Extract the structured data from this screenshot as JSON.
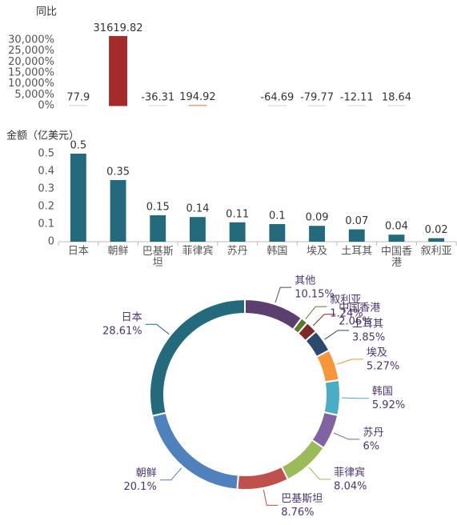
{
  "chart_data": [
    {
      "type": "bar",
      "ylabel": "同比",
      "values": [
        77.9,
        31619.82,
        -36.31,
        194.92,
        null,
        -64.69,
        -79.77,
        -12.11,
        18.64,
        null
      ],
      "colors": [
        "#d9d9d9",
        "#a52a2a",
        "#d9d9d9",
        "#f0a080",
        null,
        "#d9d9d9",
        "#d9d9d9",
        "#d9d9d9",
        "#d9d9d9",
        null
      ],
      "ylim": [
        0,
        32000
      ],
      "yticks": [
        {
          "value": 0,
          "label": "0%"
        },
        {
          "value": 5000,
          "label": "5,000%"
        },
        {
          "value": 10000,
          "label": "10,000%"
        },
        {
          "value": 15000,
          "label": "15,000%"
        },
        {
          "value": 20000,
          "label": "20,000%"
        },
        {
          "value": 25000,
          "label": "25,000%"
        },
        {
          "value": 30000,
          "label": "30,000%"
        }
      ]
    },
    {
      "type": "bar",
      "ylabel": "金额（亿美元）",
      "categories": [
        "日本",
        "朝鲜",
        "巴基斯坦",
        "菲律宾",
        "苏丹",
        "韩国",
        "埃及",
        "土耳其",
        "中国香港",
        "叙利亚"
      ],
      "values": [
        0.5,
        0.35,
        0.15,
        0.14,
        0.11,
        0.1,
        0.09,
        0.07,
        0.04,
        0.02
      ],
      "color": "#236a7c",
      "ylim": [
        0,
        0.5
      ],
      "yticks": [
        0,
        0.1,
        0.2,
        0.3,
        0.4,
        0.5
      ]
    },
    {
      "type": "donut",
      "categories": [
        "其他",
        "叙利亚",
        "中国香港",
        "土耳其",
        "埃及",
        "韩国",
        "苏丹",
        "菲律宾",
        "巴基斯坦",
        "朝鲜",
        "日本"
      ],
      "values": [
        10.15,
        1.24,
        2.06,
        3.85,
        5.27,
        5.92,
        6,
        8.04,
        8.76,
        20.1,
        28.61
      ],
      "value_labels": [
        "10.15%",
        "1.24%",
        "2.06%",
        "3.85%",
        "5.27%",
        "5.92%",
        "6%",
        "8.04%",
        "8.76%",
        "20.1%",
        "28.61%"
      ],
      "colors": [
        "#5c3f6e",
        "#5b7a2e",
        "#7d2a27",
        "#2a4a6e",
        "#f7953b",
        "#4bacc6",
        "#8064a2",
        "#9bbb59",
        "#c0504d",
        "#4f81bd",
        "#236a7c"
      ]
    }
  ]
}
